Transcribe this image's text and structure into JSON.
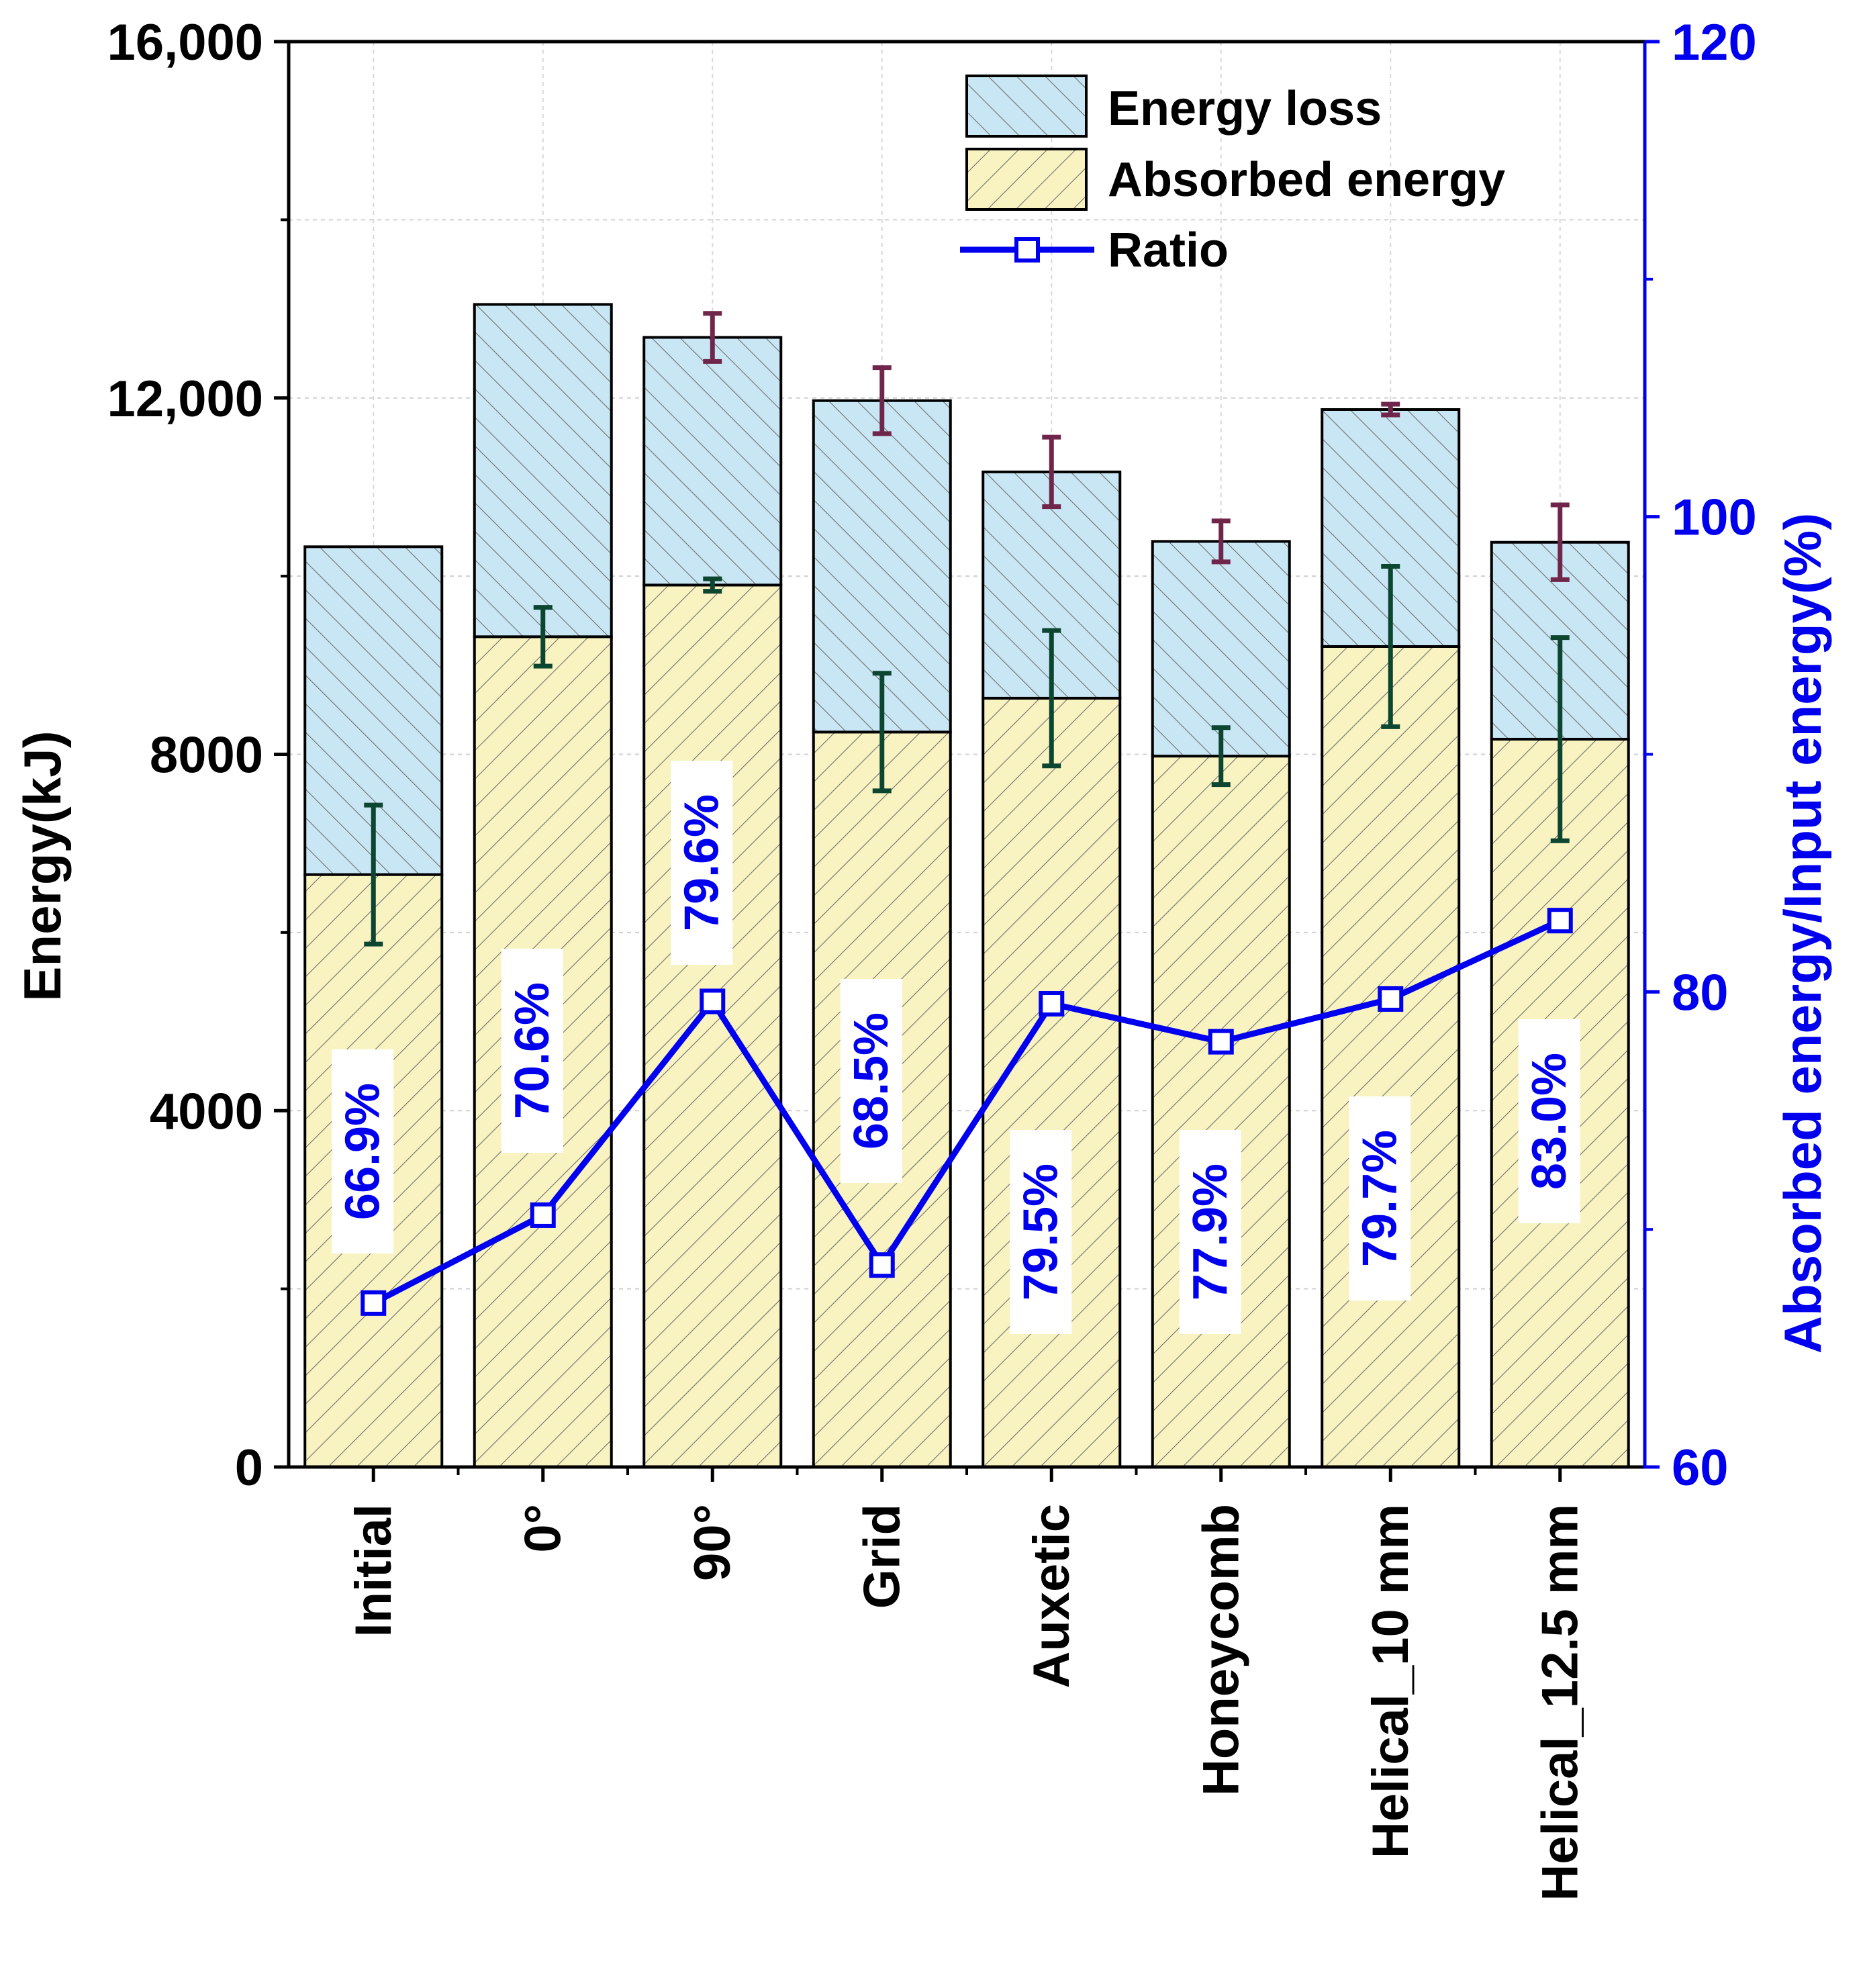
{
  "chart_data": {
    "type": "bar",
    "stacked": true,
    "categories": [
      "Initial",
      "0°",
      "90°",
      "Grid",
      "Auxetic",
      "Honeycomb",
      "Helical_10 mm",
      "Helical_12.5 mm"
    ],
    "series": [
      {
        "name": "Absorbed energy",
        "axis": "left",
        "values": [
          6650,
          9320,
          9900,
          8250,
          8630,
          7980,
          9210,
          8170
        ],
        "error": [
          780,
          330,
          70,
          660,
          760,
          320,
          900,
          1140
        ]
      },
      {
        "name": "Energy loss",
        "axis": "left",
        "values": [
          3680,
          3730,
          2780,
          3720,
          2540,
          2410,
          2660,
          2210
        ],
        "error": [
          null,
          null,
          270,
          370,
          390,
          230,
          60,
          420
        ]
      },
      {
        "name": "Ratio",
        "type": "line",
        "axis": "right",
        "values": [
          66.9,
          70.6,
          79.6,
          68.5,
          79.5,
          77.9,
          79.7,
          83.0
        ],
        "labels": [
          "66.9%",
          "70.6%",
          "79.6%",
          "68.5%",
          "79.5%",
          "77.9%",
          "79.7%",
          "83.0%"
        ]
      }
    ],
    "ylabel": "Energy(kJ)",
    "y2label": "Absorbed energy/Input energy(%)",
    "ylim": [
      0,
      16000
    ],
    "y2lim": [
      60,
      120
    ],
    "yticks": [
      "0",
      "4000",
      "8000",
      "12,000",
      "16,000"
    ],
    "y2ticks": [
      "60",
      "80",
      "100",
      "120"
    ],
    "legend": [
      "Energy loss",
      "Absorbed energy",
      "Ratio"
    ],
    "legend_position": "top-right",
    "grid": true
  },
  "colors": {
    "absorbed_fill": "#f8f3c0",
    "loss_fill": "#c8e6f4",
    "hatch": "#707070",
    "ratio_line": "#0000ee",
    "absorbed_err": "#0c4530",
    "loss_err": "#70264a",
    "right_axis": "#0000ee"
  }
}
